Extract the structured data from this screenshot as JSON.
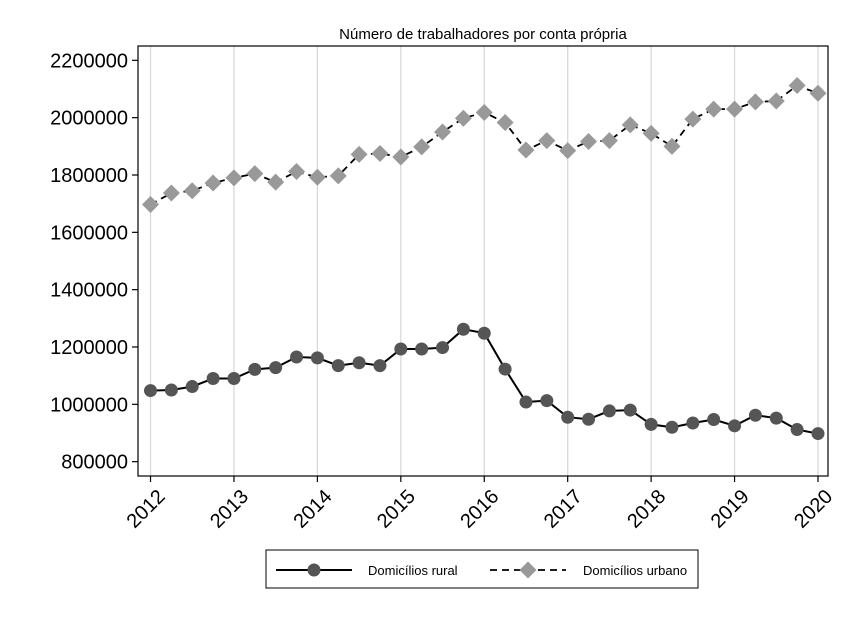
{
  "chart_data": {
    "type": "line",
    "title": "Número de trabalhadores por conta própria",
    "xlabel": "",
    "ylabel": "",
    "x": [
      2012.0,
      2012.25,
      2012.5,
      2012.75,
      2013.0,
      2013.25,
      2013.5,
      2013.75,
      2014.0,
      2014.25,
      2014.5,
      2014.75,
      2015.0,
      2015.25,
      2015.5,
      2015.75,
      2016.0,
      2016.25,
      2016.5,
      2016.75,
      2017.0,
      2017.25,
      2017.5,
      2017.75,
      2018.0,
      2018.25,
      2018.5,
      2018.75,
      2019.0,
      2019.25,
      2019.5,
      2019.75,
      2020.0
    ],
    "xlim": [
      2011.85,
      2020.12
    ],
    "ylim": [
      750000,
      2250000
    ],
    "x_ticks": [
      2012,
      2013,
      2014,
      2015,
      2016,
      2017,
      2018,
      2019,
      2020
    ],
    "x_tick_labels": [
      "2012",
      "2013",
      "2014",
      "2015",
      "2016",
      "2017",
      "2018",
      "2019",
      "2020"
    ],
    "y_ticks": [
      800000,
      1000000,
      1200000,
      1400000,
      1600000,
      1800000,
      2000000,
      2200000
    ],
    "y_tick_labels": [
      "800000",
      "1000000",
      "1200000",
      "1400000",
      "1600000",
      "1800000",
      "2000000",
      "2200000"
    ],
    "grid": "vertical",
    "legend_position": "bottom",
    "series": [
      {
        "name": "Domicílios rural",
        "color": "#555555",
        "marker": "circle",
        "line": "solid",
        "values": [
          1048000,
          1050000,
          1062000,
          1090000,
          1090000,
          1122000,
          1128000,
          1165000,
          1162000,
          1135000,
          1145000,
          1135000,
          1193000,
          1193000,
          1198000,
          1262000,
          1248000,
          1123000,
          1008000,
          1013000,
          955000,
          948000,
          977000,
          980000,
          930000,
          920000,
          935000,
          947000,
          925000,
          962000,
          952000,
          912000,
          898000
        ]
      },
      {
        "name": "Domicílios urbano",
        "color": "#999999",
        "marker": "diamond",
        "line": "dashed",
        "values": [
          1697000,
          1737000,
          1745000,
          1772000,
          1790000,
          1805000,
          1775000,
          1812000,
          1792000,
          1797000,
          1872000,
          1875000,
          1863000,
          1898000,
          1950000,
          1998000,
          2018000,
          1983000,
          1887000,
          1920000,
          1885000,
          1917000,
          1920000,
          1975000,
          1945000,
          1900000,
          1995000,
          2030000,
          2030000,
          2055000,
          2058000,
          2112000,
          2085000
        ]
      }
    ]
  }
}
